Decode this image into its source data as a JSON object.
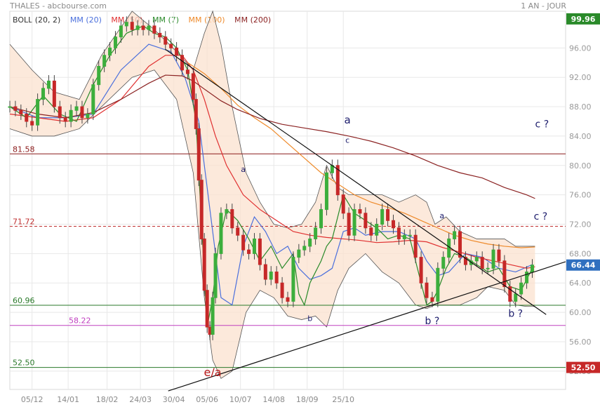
{
  "header": {
    "title": "THALES - abcbourse.com",
    "period": "1 AN - JOUR"
  },
  "legend": [
    {
      "label": "BOLL (20, 2)",
      "color": "#333333"
    },
    {
      "label": "MM (20)",
      "color": "#4a6fdc"
    },
    {
      "label": "MM (50)",
      "color": "#e03030"
    },
    {
      "label": "MM (7)",
      "color": "#2a8a2a"
    },
    {
      "label": "MM (100)",
      "color": "#ee8a2a"
    },
    {
      "label": "MM (200)",
      "color": "#8b2222"
    }
  ],
  "chart_data": {
    "type": "candlestick",
    "x_ticks": [
      "05/12",
      "14/01",
      "18/02",
      "24/03",
      "30/04",
      "05/06",
      "10/07",
      "14/08",
      "18/09",
      "25/10"
    ],
    "y_ticks": [
      "52.00",
      "56.00",
      "60.00",
      "64.00",
      "68.00",
      "72.00",
      "76.00",
      "80.00",
      "84.00",
      "88.00",
      "92.00",
      "96.00"
    ],
    "ylim": [
      49.5,
      101
    ],
    "last_price": "66.44",
    "high_marker": "99.96",
    "low_marker": "52.50",
    "levels": [
      {
        "label": "81.58",
        "value": 81.58,
        "style": "solid",
        "color": "#8b1a1a"
      },
      {
        "label": "71.72",
        "value": 71.72,
        "style": "dashed",
        "color": "#c03030"
      },
      {
        "label": "60.96",
        "value": 60.96,
        "style": "solid",
        "color": "#2a7a2a"
      },
      {
        "label": "58.22",
        "value": 58.22,
        "style": "solid",
        "color": "#c040c0"
      },
      {
        "label": "52.50",
        "value": 52.5,
        "style": "solid",
        "color": "#2a7a2a"
      }
    ],
    "annotations": [
      {
        "text": "a",
        "x": 84,
        "y": 79.1
      },
      {
        "text": "b",
        "x": 108,
        "y": 58.8
      },
      {
        "text": "a",
        "x": 121.5,
        "y": 85.7
      },
      {
        "text": "c",
        "x": 121.5,
        "y": 83.1
      },
      {
        "text": "b ?",
        "x": 152,
        "y": 58.4
      },
      {
        "text": "a",
        "x": 155.5,
        "y": 72.8
      },
      {
        "text": "c ?",
        "x": 191.5,
        "y": 85.2
      },
      {
        "text": "c ?",
        "x": 191,
        "y": 72.6
      },
      {
        "text": "b ?",
        "x": 182,
        "y": 59.4
      },
      {
        "text": "e/a",
        "x": 73,
        "y": 51.3
      }
    ],
    "trendlines": [
      {
        "x1": 56,
        "y1": 95.8,
        "x2": 193,
        "y2": 59.7
      },
      {
        "x1": 57,
        "y1": 49.3,
        "x2": 200,
        "y2": 66.9
      }
    ],
    "series": [
      {
        "name": "BOLL (20, 2)",
        "kind": "band",
        "x": [
          0,
          8,
          16,
          25,
          33,
          44,
          52,
          60,
          66,
          70,
          73,
          76,
          80,
          85,
          90,
          95,
          100,
          105,
          110,
          114,
          118,
          122,
          128,
          134,
          140,
          146,
          150,
          153,
          157,
          162,
          168,
          172,
          178,
          182,
          186,
          189
        ],
        "upper": [
          96.5,
          93,
          90,
          89,
          95,
          101,
          98.5,
          95.5,
          93,
          98,
          101,
          96.5,
          88,
          79,
          75,
          72,
          71.5,
          72,
          75,
          80,
          77,
          76,
          76,
          76,
          75,
          76,
          75,
          72,
          73,
          71,
          70,
          70,
          70,
          69,
          69,
          69
        ],
        "lower": [
          85,
          84,
          84,
          85,
          88,
          92,
          93,
          89,
          79,
          62,
          53.5,
          51,
          52,
          60,
          63,
          62,
          59.5,
          59,
          59.5,
          58,
          63,
          66,
          68,
          65.5,
          64,
          61,
          60.5,
          61,
          61,
          61,
          62,
          63.5,
          63,
          61,
          60.8,
          60.8
        ]
      },
      {
        "name": "MM (20)",
        "kind": "line",
        "color": "#4a6fdc",
        "x": [
          0,
          10,
          20,
          30,
          40,
          50,
          58,
          63,
          68,
          72,
          76,
          80,
          84,
          88,
          92,
          96,
          100,
          104,
          108,
          112,
          116,
          120,
          124,
          128,
          134,
          140,
          146,
          150,
          154,
          158,
          164,
          170,
          176,
          182,
          188
        ],
        "y": [
          88,
          86.5,
          86.5,
          87,
          93,
          96.5,
          95.5,
          92,
          86,
          74,
          62,
          61,
          69,
          73,
          71,
          68,
          69,
          66,
          64.5,
          65,
          66,
          71,
          71.5,
          70.5,
          71,
          71,
          70,
          67,
          65,
          65.5,
          68,
          67.5,
          66,
          65.5,
          66.5
        ]
      },
      {
        "name": "MM (50)",
        "kind": "line",
        "color": "#e03030",
        "x": [
          0,
          10,
          20,
          30,
          40,
          50,
          56,
          62,
          66,
          70,
          74,
          78,
          84,
          90,
          96,
          102,
          108,
          114,
          120,
          126,
          132,
          138,
          144,
          150,
          156,
          162,
          168,
          174,
          180,
          186,
          189
        ],
        "y": [
          87,
          86.5,
          86,
          86.5,
          89,
          93.5,
          95,
          95,
          93,
          89,
          84,
          80,
          76,
          74,
          72.5,
          71,
          70.5,
          70.2,
          70,
          69.8,
          69.5,
          69.6,
          69.8,
          69.6,
          68.8,
          68.2,
          67.5,
          67,
          66.5,
          66,
          66.2
        ]
      },
      {
        "name": "MM (7)",
        "kind": "line",
        "color": "#2a8a2a",
        "x": [
          0,
          6,
          12,
          18,
          24,
          30,
          36,
          42,
          48,
          52,
          56,
          60,
          64,
          67,
          69,
          71,
          73,
          75,
          78,
          82,
          86,
          90,
          94,
          98,
          102,
          104,
          106,
          108,
          110,
          112,
          114,
          116,
          118,
          120,
          124,
          128,
          132,
          136,
          140,
          144,
          148,
          150,
          152,
          154,
          157,
          160,
          164,
          168,
          172,
          176,
          180,
          184,
          188
        ],
        "y": [
          88,
          86.5,
          89.5,
          87,
          86,
          91,
          95,
          98,
          99,
          98,
          97.5,
          96,
          93,
          86,
          72,
          58,
          62,
          69,
          74,
          72.5,
          70,
          67,
          69,
          66,
          68,
          62.5,
          61,
          64,
          65.5,
          67,
          69,
          70,
          73,
          76,
          73.5,
          72.5,
          71.5,
          70,
          70.5,
          70,
          64,
          61,
          61.5,
          63,
          66,
          68,
          67.5,
          66.5,
          65.5,
          66,
          63.5,
          63,
          66
        ]
      },
      {
        "name": "MM (100)",
        "kind": "line",
        "color": "#ee8a2a",
        "x": [
          64,
          70,
          76,
          82,
          88,
          94,
          100,
          106,
          112,
          118,
          124,
          130,
          136,
          142,
          148,
          154,
          160,
          166,
          172,
          178,
          184,
          189
        ],
        "y": [
          94,
          92.5,
          90.5,
          88.2,
          86.5,
          85,
          83,
          81,
          79,
          77.5,
          76,
          75,
          74.3,
          73.5,
          72.5,
          71.5,
          70.5,
          69.8,
          69.3,
          69,
          68.8,
          68.9
        ]
      },
      {
        "name": "MM (200)",
        "kind": "line",
        "color": "#8b2222",
        "x": [
          0,
          10,
          20,
          30,
          40,
          50,
          56,
          62,
          66,
          70,
          76,
          82,
          90,
          98,
          106,
          114,
          122,
          130,
          138,
          146,
          154,
          162,
          170,
          178,
          186,
          189
        ],
        "y": [
          88,
          87,
          86.5,
          87.2,
          89,
          91.2,
          92.3,
          92.2,
          91.5,
          90.4,
          88.8,
          87.6,
          86.4,
          85.6,
          85.1,
          84.6,
          84,
          83.3,
          82.4,
          81.3,
          80,
          79,
          78.3,
          77,
          76,
          75.5
        ]
      },
      {
        "name": "price",
        "kind": "candles",
        "x": [
          0,
          2,
          4,
          6,
          8,
          10,
          12,
          14,
          16,
          18,
          20,
          22,
          24,
          26,
          28,
          30,
          32,
          34,
          36,
          38,
          40,
          42,
          44,
          46,
          48,
          50,
          52,
          54,
          56,
          58,
          60,
          62,
          64,
          66,
          67,
          68,
          69,
          70,
          71,
          72,
          73,
          74,
          76,
          78,
          80,
          82,
          84,
          86,
          88,
          90,
          92,
          94,
          96,
          98,
          100,
          102,
          104,
          106,
          108,
          110,
          112,
          114,
          116,
          118,
          120,
          122,
          124,
          126,
          128,
          130,
          132,
          134,
          136,
          138,
          140,
          142,
          144,
          146,
          148,
          150,
          152,
          154,
          156,
          158,
          160,
          162,
          164,
          166,
          168,
          170,
          172,
          174,
          176,
          178,
          180,
          182,
          184,
          186,
          188
        ],
        "close": [
          88,
          87.5,
          87,
          86,
          85.5,
          89,
          90.5,
          91.5,
          88,
          86.5,
          86,
          87.5,
          88,
          86.5,
          87,
          91,
          93.5,
          95,
          96,
          97.5,
          99,
          99.5,
          98.5,
          99,
          98.5,
          99,
          98,
          97.5,
          96.5,
          96,
          95,
          93,
          92.5,
          89,
          85,
          78,
          70,
          63,
          58,
          57,
          62,
          68,
          73.5,
          74,
          71.5,
          70.5,
          68.5,
          68,
          70,
          66.5,
          64.5,
          65.5,
          64,
          62,
          61.5,
          67.5,
          68.5,
          69,
          70,
          71.5,
          74,
          79,
          80,
          76,
          73.5,
          70.5,
          74,
          73.5,
          71.5,
          70.5,
          72,
          74,
          72.5,
          71.5,
          70,
          70.5,
          70.5,
          67.5,
          64,
          62,
          61.5,
          66,
          67.5,
          70,
          71,
          67.5,
          66.5,
          67,
          67.5,
          66,
          66,
          68.5,
          67,
          63.5,
          61.5,
          62.5,
          64,
          65.5,
          66.44
        ]
      }
    ]
  }
}
